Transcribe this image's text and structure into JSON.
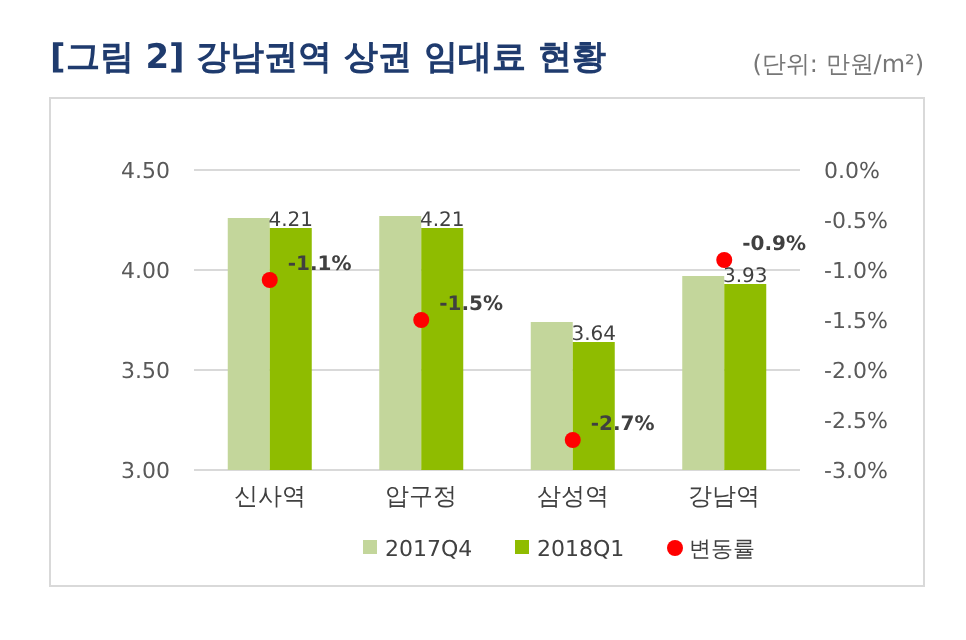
{
  "chart_data": {
    "type": "bar",
    "title": "[그림 2] 강남권역 상권 임대료 현황",
    "subtitle": "(단위: 만원/m²)",
    "categories": [
      "신사역",
      "압구정",
      "삼성역",
      "강남역"
    ],
    "series": [
      {
        "name": "2017Q4",
        "color": "#c3d69b",
        "values": [
          4.26,
          4.27,
          3.74,
          3.97
        ]
      },
      {
        "name": "2018Q1",
        "color": "#8fbc00",
        "values": [
          4.21,
          4.21,
          3.64,
          3.93
        ],
        "value_labels": [
          "4.21",
          "4.21",
          "3.64",
          "3.93"
        ]
      },
      {
        "name": "변동률",
        "type": "scatter",
        "axis": "y2",
        "color": "#ff0000",
        "values": [
          -1.1,
          -1.5,
          -2.7,
          -0.9
        ],
        "value_labels": [
          "-1.1%",
          "-1.5%",
          "-2.7%",
          "-0.9%"
        ]
      }
    ],
    "ylim": [
      3.0,
      4.5
    ],
    "yticks": [
      {
        "value": 3.0,
        "label": "3.00"
      },
      {
        "value": 3.5,
        "label": "3.50"
      },
      {
        "value": 4.0,
        "label": "4.00"
      },
      {
        "value": 4.5,
        "label": "4.50"
      }
    ],
    "y2lim": [
      -3.0,
      0.0
    ],
    "y2ticks": [
      {
        "value": -3.0,
        "label": "-3.0%"
      },
      {
        "value": -2.5,
        "label": "-2.5%"
      },
      {
        "value": -2.0,
        "label": "-2.0%"
      },
      {
        "value": -1.5,
        "label": "-1.5%"
      },
      {
        "value": -1.0,
        "label": "-1.0%"
      },
      {
        "value": -0.5,
        "label": "-0.5%"
      },
      {
        "value": 0.0,
        "label": "0.0%"
      }
    ],
    "grid": "y",
    "legend": "bottom",
    "marker": "circle"
  }
}
